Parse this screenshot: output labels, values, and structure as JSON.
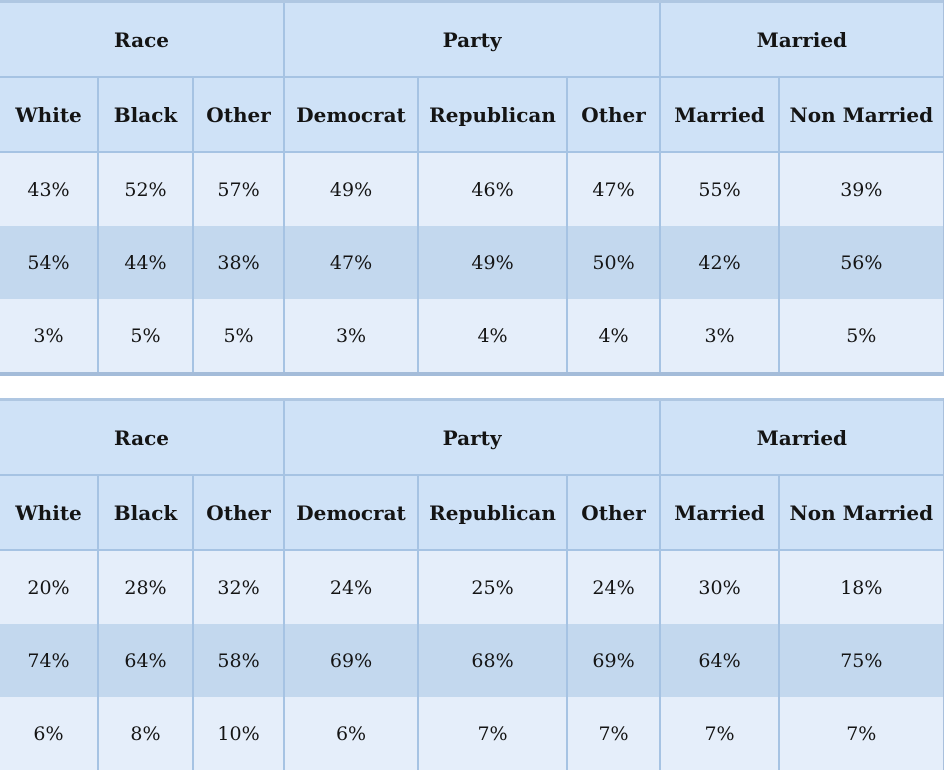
{
  "chart_data": [
    {
      "type": "table",
      "name": "upper-demographics-table",
      "group_headers": [
        {
          "label": "Race",
          "colspan": 3
        },
        {
          "label": "Party",
          "colspan": 3
        },
        {
          "label": "Married",
          "colspan": 2
        }
      ],
      "columns": [
        "White",
        "Black",
        "Other",
        "Democrat",
        "Republican",
        "Other",
        "Married",
        "Non Married"
      ],
      "rows": [
        [
          "43%",
          "52%",
          "57%",
          "49%",
          "46%",
          "47%",
          "55%",
          "39%"
        ],
        [
          "54%",
          "44%",
          "38%",
          "47%",
          "49%",
          "50%",
          "42%",
          "56%"
        ],
        [
          "3%",
          "5%",
          "5%",
          "3%",
          "4%",
          "4%",
          "3%",
          "5%"
        ]
      ]
    },
    {
      "type": "table",
      "name": "lower-demographics-table",
      "group_headers": [
        {
          "label": "Race",
          "colspan": 3
        },
        {
          "label": "Party",
          "colspan": 3
        },
        {
          "label": "Married",
          "colspan": 2
        }
      ],
      "columns": [
        "White",
        "Black",
        "Other",
        "Democrat",
        "Republican",
        "Other",
        "Married",
        "Non Married"
      ],
      "rows": [
        [
          "20%",
          "28%",
          "32%",
          "24%",
          "25%",
          "24%",
          "30%",
          "18%"
        ],
        [
          "74%",
          "64%",
          "58%",
          "69%",
          "68%",
          "69%",
          "64%",
          "75%"
        ],
        [
          "6%",
          "8%",
          "10%",
          "6%",
          "7%",
          "7%",
          "7%",
          "7%"
        ]
      ]
    }
  ],
  "colors": {
    "header_bg": "#cfe2f7",
    "row_light_bg": "#e5eefa",
    "row_dark_bg": "#c3d8ee",
    "cell_border": "#a6c3e3",
    "outer_border": "#a9c0dd",
    "text": "#141414",
    "page_bg": "#ffffff"
  }
}
